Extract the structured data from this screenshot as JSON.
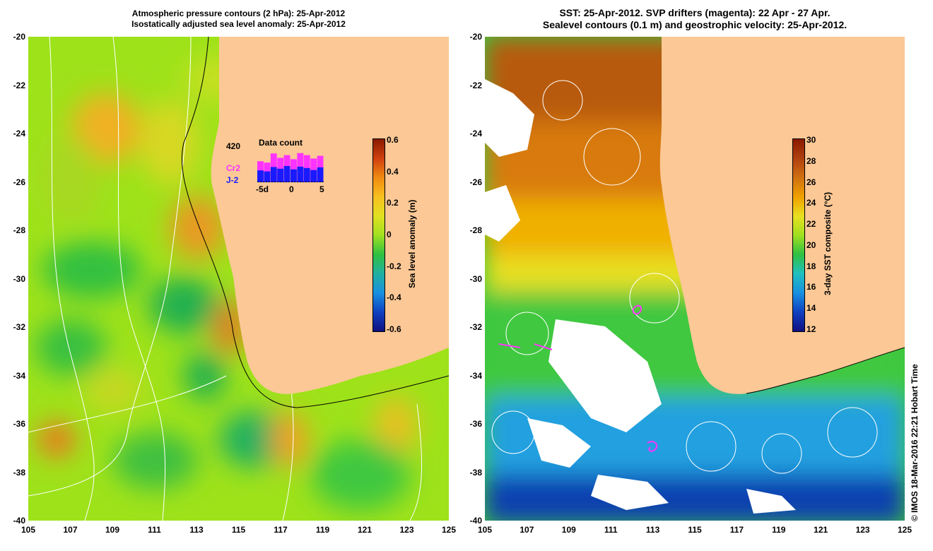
{
  "left_panel": {
    "title_line1": "Atmospheric pressure contours (2 hPa): 25-Apr-2012",
    "title_line2": "Isostatically adjusted sea level anomaly: 25-Apr-2012",
    "colorbar": {
      "title": "Sea level anomaly (m)",
      "ticks": [
        "0.6",
        "0.4",
        "0.2",
        "0",
        "-0.2",
        "-0.4",
        "-0.6"
      ]
    },
    "inset": {
      "count": "420",
      "title": "Data count",
      "sat1": "Cr2",
      "sat2": "J-2",
      "xlabels": [
        "-5d",
        "0",
        "5"
      ],
      "bars_total": [
        0.62,
        0.58,
        0.85,
        0.72,
        0.8,
        0.68,
        0.86,
        0.8,
        0.7,
        0.78
      ],
      "bars_j2": [
        0.35,
        0.32,
        0.45,
        0.4,
        0.48,
        0.38,
        0.46,
        0.42,
        0.36,
        0.44
      ],
      "color_cr2": "#ff33ff",
      "color_j2": "#1a1aff"
    }
  },
  "right_panel": {
    "title_line1": "SST: 25-Apr-2012. SVP drifters (magenta): 22 Apr - 27 Apr.",
    "title_line2": "Sealevel contours (0.1 m) and geostrophic velocity: 25-Apr-2012.",
    "colorbar": {
      "title": "3-day SST composite (°C)",
      "ticks": [
        "30",
        "28",
        "26",
        "24",
        "22",
        "20",
        "18",
        "16",
        "14",
        "12"
      ]
    }
  },
  "axes": {
    "lat_labels": [
      "-20",
      "-22",
      "-24",
      "-26",
      "-28",
      "-30",
      "-32",
      "-34",
      "-36",
      "-38",
      "-40"
    ],
    "lon_labels": [
      "105",
      "107",
      "109",
      "111",
      "113",
      "115",
      "117",
      "119",
      "121",
      "123",
      "125"
    ],
    "lat_range": [
      -40,
      -20
    ],
    "lon_range": [
      105,
      125
    ]
  },
  "credit": "© IMOS 18-Mar-2016 22:21 Hobart Time",
  "colors": {
    "land": "#fbc896",
    "ocean_mid": "#7ee000",
    "white_cloud": "#ffffff"
  }
}
